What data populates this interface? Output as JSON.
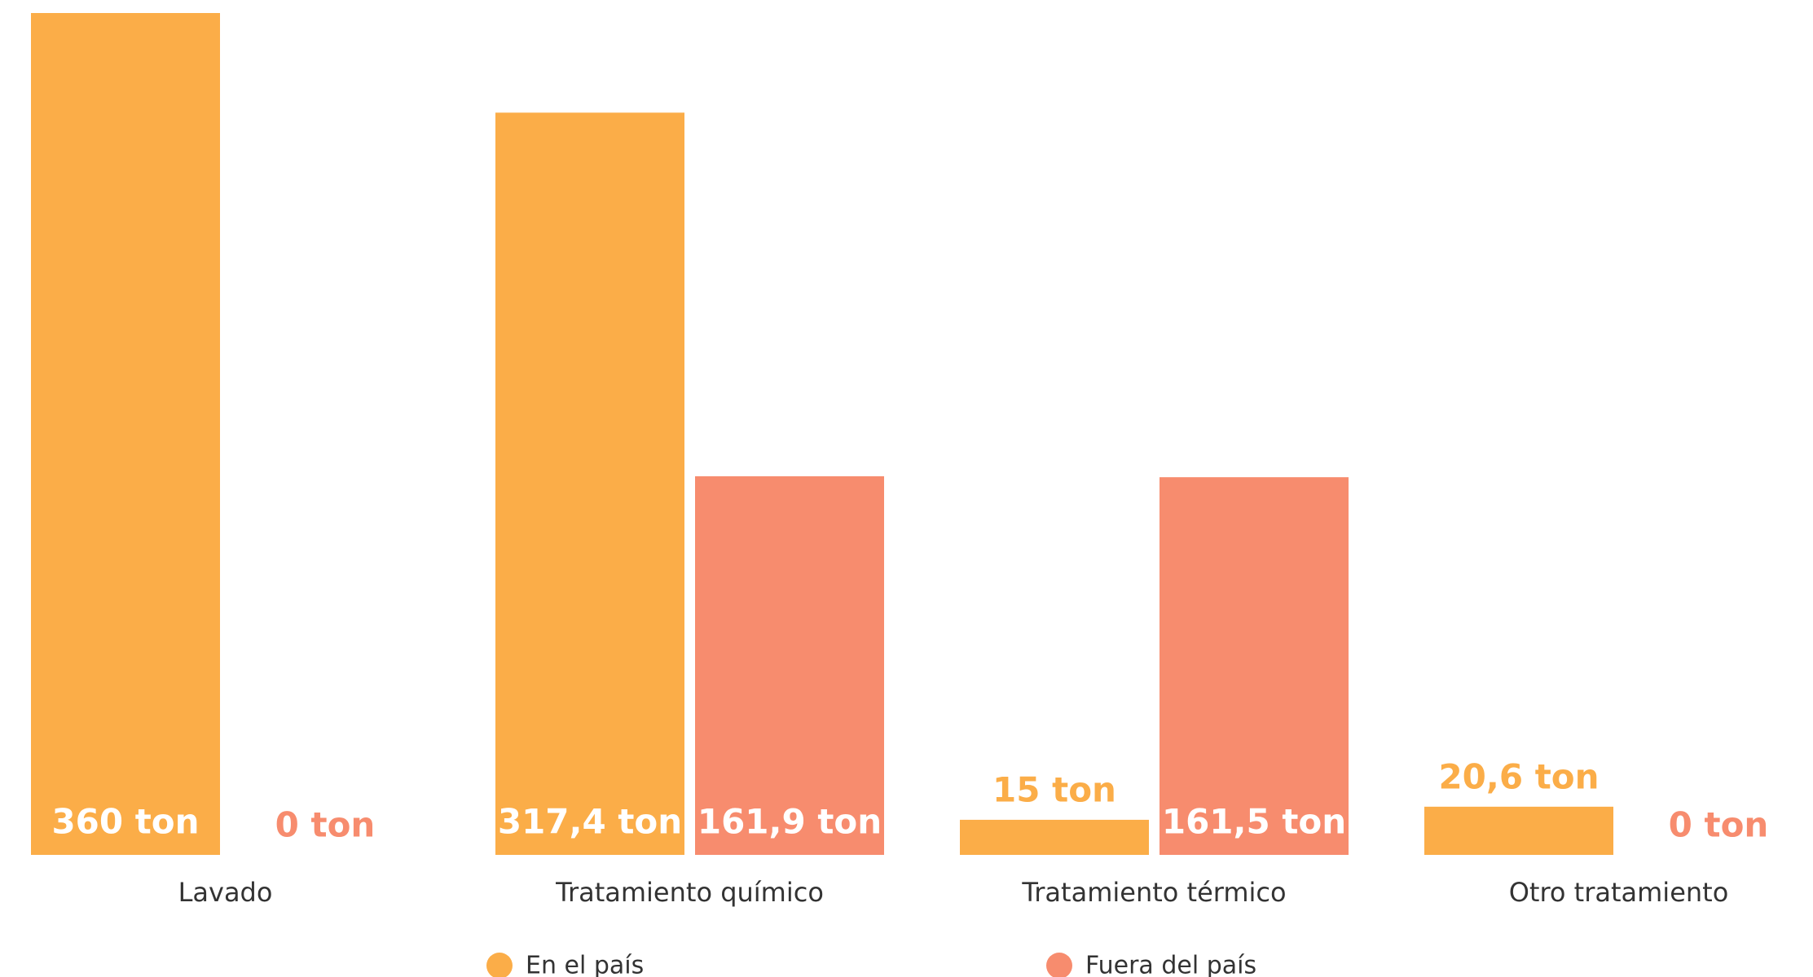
{
  "chart_data": {
    "type": "bar",
    "categories": [
      "Lavado",
      "Tratamiento químico",
      "Tratamiento térmico",
      "Otro tratamiento"
    ],
    "series": [
      {
        "name": "En el país",
        "color": "#fbad48",
        "values": [
          360,
          317.4,
          15,
          20.6
        ],
        "value_labels": [
          "360 ton",
          "317,4 ton",
          "15 ton",
          "20,6 ton"
        ]
      },
      {
        "name": "Fuera del país",
        "color": "#f78c6e",
        "values": [
          0,
          161.9,
          161.5,
          0
        ],
        "value_labels": [
          "0 ton",
          "161,9 ton",
          "161,5 ton",
          "0 ton"
        ]
      }
    ]
  }
}
